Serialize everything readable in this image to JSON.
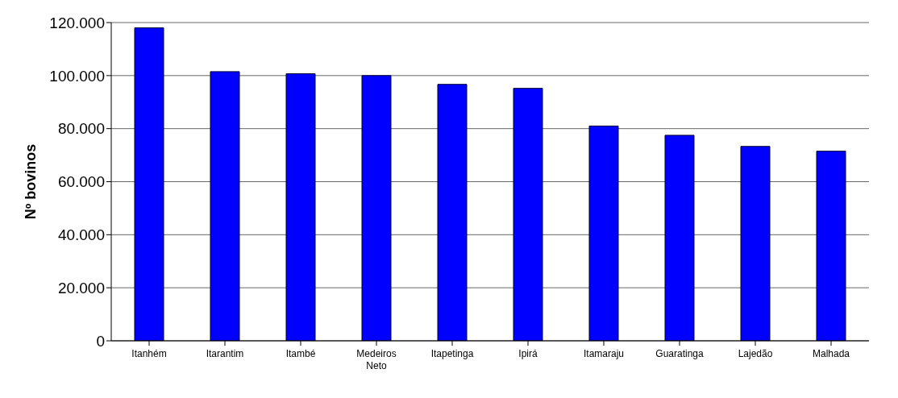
{
  "chart_data": {
    "type": "bar",
    "ylabel": "Nº bovinos",
    "categories": [
      "Itanhém",
      "Itarantim",
      "Itambé",
      "Medeiros Neto",
      "Itapetinga",
      "Ipirá",
      "Itamaraju",
      "Guaratinga",
      "Lajedão",
      "Malhada"
    ],
    "values": [
      118000,
      101500,
      100700,
      100000,
      96700,
      95200,
      81000,
      77500,
      73300,
      71500
    ],
    "color": "#0000ff",
    "ylim": [
      0,
      120000
    ],
    "yticks": [
      0,
      {
        "value": 20000,
        "label": "20.000"
      },
      {
        "value": 40000,
        "label": "40.000"
      },
      {
        "value": 60000,
        "label": "60.000"
      },
      {
        "value": 80000,
        "label": "80.000"
      },
      {
        "value": 100000,
        "label": "100.000"
      },
      {
        "value": 120000,
        "label": "120.000"
      }
    ],
    "grid": "y"
  }
}
